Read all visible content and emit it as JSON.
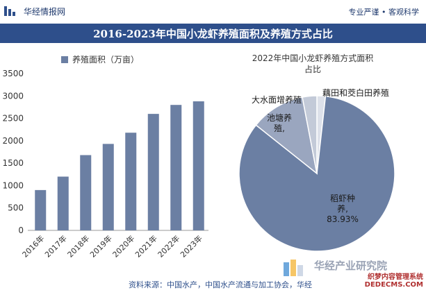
{
  "header": {
    "brand": "华经情报网",
    "slogan": "专业严谨 • 客观科学",
    "title": "2016-2023年中国小龙虾养殖面积及养殖方式占比"
  },
  "chart_data": [
    {
      "type": "bar",
      "legend": "养殖面积（万亩）",
      "legend_position": "top-left",
      "categories": [
        "2016年",
        "2017年",
        "2018年",
        "2019年",
        "2020年",
        "2021年",
        "2022年",
        "2023年"
      ],
      "values": [
        900,
        1200,
        1680,
        1930,
        2180,
        2600,
        2800,
        2880
      ],
      "ylim": [
        0,
        3500
      ],
      "yticks": [
        "0",
        "500",
        "1000",
        "1500",
        "2000",
        "2500",
        "3000",
        "3500"
      ],
      "bar_color": "#6b7fa3",
      "grid": false
    },
    {
      "type": "pie",
      "title_lines": [
        "2022年中国小龙虾养殖方式面积",
        "占比"
      ],
      "slices": [
        {
          "name": "稻虾种养",
          "value": 83.93,
          "label_lines": [
            "稻虾种",
            "养,",
            "83.93%"
          ],
          "color": "#6b7fa3"
        },
        {
          "name": "池塘养殖",
          "value": 11.3,
          "label_lines": [
            "池塘养",
            "殖,"
          ],
          "color": "#9aa6bf"
        },
        {
          "name": "大水面增养殖",
          "value": 3.0,
          "label_lines": [
            "大水面增养殖"
          ],
          "color": "#c3cad8"
        },
        {
          "name": "藕田和茭白田养殖",
          "value": 1.77,
          "label_lines": [
            "藕田和茭白田养殖"
          ],
          "color": "#dde1ea"
        }
      ]
    }
  ],
  "footer": {
    "watermark": "华经产业研究院",
    "source": "资料来源：中国水产，中国水产流通与加工协会，华经",
    "stamp_line1": "织梦内容管理系统",
    "stamp_line2": "DEDECMS.COM"
  },
  "colors": {
    "header_bar": "#2e4f8b",
    "bar": "#6b7fa3",
    "text": "#333333"
  },
  "icons": [
    "brand-logo-icon",
    "footer-bar-icon"
  ]
}
